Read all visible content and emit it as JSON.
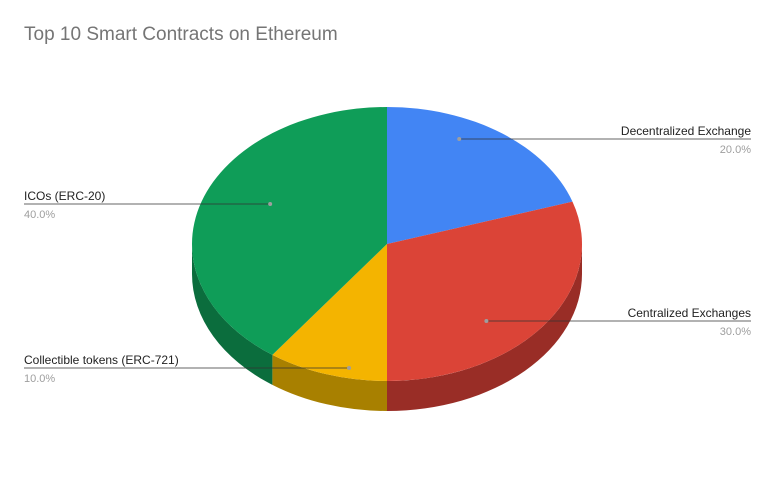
{
  "chart_data": {
    "type": "pie",
    "variant": "3d",
    "title": "Top 10 Smart Contracts on Ethereum",
    "slices": [
      {
        "label": "Decentralized Exchange",
        "value": 20.0,
        "percent_label": "20.0%",
        "color": "#4285f4",
        "side_color": "#2f5fb0"
      },
      {
        "label": "Centralized Exchanges",
        "value": 30.0,
        "percent_label": "30.0%",
        "color": "#db4437",
        "side_color": "#992d26"
      },
      {
        "label": "Collectible tokens (ERC-721)",
        "value": 10.0,
        "percent_label": "10.0%",
        "color": "#f4b400",
        "side_color": "#a88000"
      },
      {
        "label": "ICOs (ERC-20)",
        "value": 40.0,
        "percent_label": "40.0%",
        "color": "#0f9d58",
        "side_color": "#0b6d3d"
      }
    ],
    "legend": "labels-outside"
  }
}
